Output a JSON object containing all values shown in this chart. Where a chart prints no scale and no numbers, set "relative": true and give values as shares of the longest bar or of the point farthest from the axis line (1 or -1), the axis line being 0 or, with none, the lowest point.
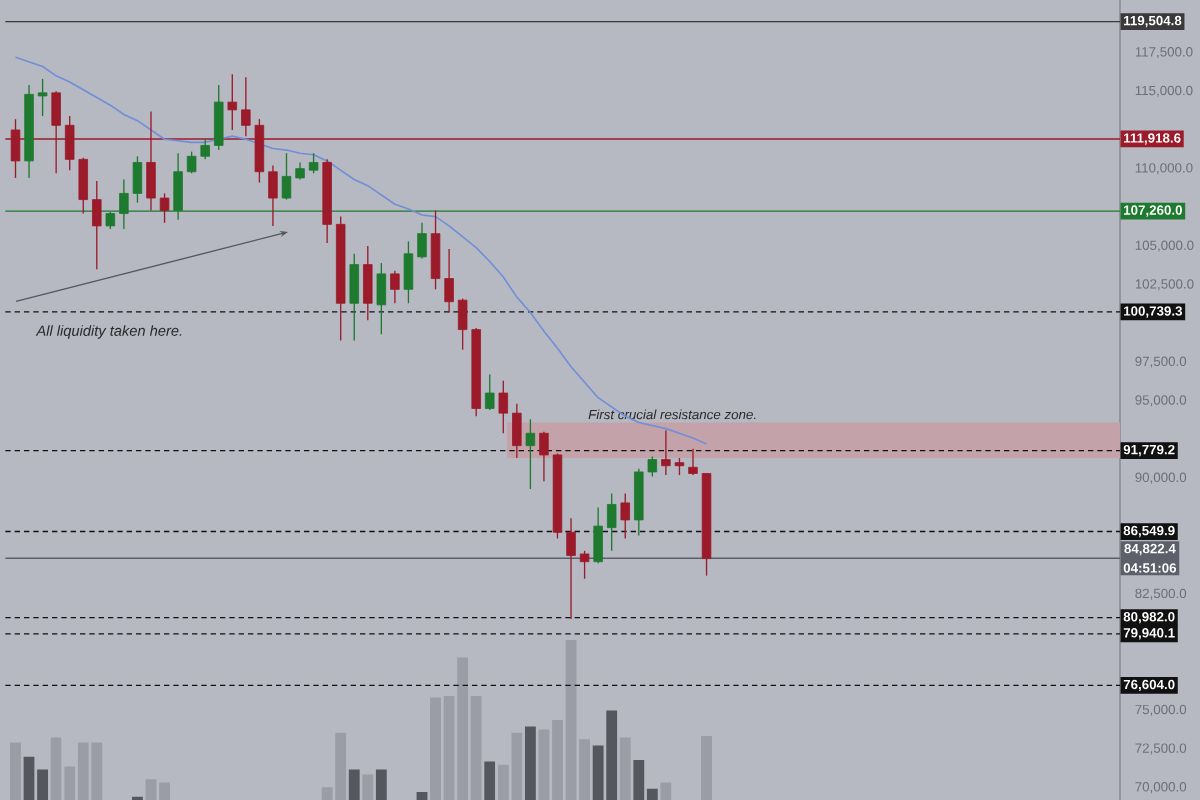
{
  "chart_data": [
    {
      "type": "candlestick",
      "categories": [
        null,
        null,
        null,
        null,
        null,
        null,
        null,
        null,
        null,
        null,
        null,
        null,
        null,
        null,
        null,
        null,
        null,
        null,
        null,
        null,
        null,
        null,
        null,
        null,
        null,
        null,
        null,
        null,
        null,
        null,
        null,
        null,
        null,
        null,
        null,
        null,
        null,
        null,
        null,
        null,
        null,
        null,
        null,
        null,
        null,
        null,
        null,
        null,
        null,
        null,
        null,
        null
      ],
      "ohlc": [
        [
          112500,
          113200,
          109400,
          110500
        ],
        [
          110500,
          115400,
          109400,
          114800
        ],
        [
          114700,
          115800,
          113400,
          114900
        ],
        [
          114900,
          115000,
          109700,
          112800
        ],
        [
          112800,
          113400,
          109900,
          110600
        ],
        [
          110600,
          110700,
          107100,
          108000
        ],
        [
          108000,
          109200,
          103500,
          106300
        ],
        [
          106300,
          107200,
          106100,
          107100
        ],
        [
          107100,
          109300,
          106100,
          108400
        ],
        [
          108400,
          110800,
          107800,
          110400
        ],
        [
          110400,
          113700,
          107300,
          108100
        ],
        [
          108100,
          108400,
          106500,
          107300
        ],
        [
          107300,
          111000,
          106700,
          109800
        ],
        [
          109800,
          111100,
          109700,
          110800
        ],
        [
          110800,
          111900,
          110600,
          111500
        ],
        [
          111500,
          115400,
          111200,
          114300
        ],
        [
          114300,
          116100,
          112500,
          113800
        ],
        [
          113800,
          115900,
          112100,
          112800
        ],
        [
          112800,
          113200,
          109100,
          109800
        ],
        [
          109800,
          110200,
          106300,
          108100
        ],
        [
          108100,
          111000,
          108000,
          109500
        ],
        [
          109400,
          110400,
          109300,
          110000
        ],
        [
          109900,
          111000,
          109700,
          110400
        ],
        [
          110400,
          110600,
          105200,
          106400
        ],
        [
          106400,
          106900,
          98900,
          101300
        ],
        [
          101300,
          104500,
          98900,
          103800
        ],
        [
          103800,
          105000,
          100200,
          101300
        ],
        [
          101200,
          103900,
          99300,
          103200
        ],
        [
          103200,
          103400,
          101300,
          102200
        ],
        [
          102200,
          105300,
          101300,
          104500
        ],
        [
          104300,
          106500,
          104200,
          105800
        ],
        [
          105800,
          107300,
          102200,
          102900
        ],
        [
          102900,
          104800,
          100700,
          101400
        ],
        [
          101500,
          101600,
          98300,
          99600
        ],
        [
          99600,
          99700,
          94000,
          94500
        ],
        [
          94500,
          96700,
          94400,
          95500
        ],
        [
          95500,
          96300,
          92900,
          94200
        ],
        [
          94200,
          94800,
          91300,
          92100
        ],
        [
          92100,
          93800,
          89300,
          92900
        ],
        [
          92900,
          93000,
          89800,
          91500
        ],
        [
          91500,
          91600,
          86100,
          86500
        ],
        [
          86500,
          87400,
          80900,
          85000
        ],
        [
          85100,
          85300,
          83500,
          84600
        ],
        [
          84600,
          88100,
          84500,
          86900
        ],
        [
          86800,
          89000,
          85300,
          88300
        ],
        [
          88400,
          89000,
          86100,
          87300
        ],
        [
          87300,
          90600,
          86300,
          90400
        ],
        [
          90400,
          91400,
          90100,
          91200
        ],
        [
          91200,
          93100,
          90200,
          90800
        ],
        [
          91000,
          91300,
          90200,
          90800
        ],
        [
          90700,
          91900,
          90200,
          90300
        ],
        [
          90300,
          90300,
          83700,
          84800
        ]
      ],
      "series": [
        {
          "type": "line",
          "color": "#6f8fd8",
          "values": [
            117200,
            116900,
            116600,
            116000,
            115600,
            115100,
            114600,
            114100,
            113500,
            113100,
            112500,
            111900,
            111800,
            111700,
            111700,
            111900,
            112100,
            111900,
            111600,
            111300,
            111200,
            111000,
            110900,
            110500,
            109900,
            109300,
            108900,
            108300,
            107700,
            107400,
            107000,
            106900,
            106300,
            105600,
            104900,
            104000,
            103000,
            101700,
            100700,
            99500,
            98400,
            97200,
            96200,
            95200,
            94600,
            94000,
            93600,
            93400,
            93200,
            92900,
            92600,
            92200
          ]
        }
      ],
      "ylim": [
        69200,
        120900
      ],
      "yticks": [
        {
          "value": 70000,
          "label": "70,000.0"
        },
        {
          "value": 72500,
          "label": "72,500.0"
        },
        {
          "value": 75000,
          "label": "75,000.0"
        },
        {
          "value": 82500,
          "label": "82,500.0"
        },
        {
          "value": 90000,
          "label": "90,000.0"
        },
        {
          "value": 95000,
          "label": "95,000.0"
        },
        {
          "value": 97500,
          "label": "97,500.0"
        },
        {
          "value": 102500,
          "label": "102,500.0"
        },
        {
          "value": 105000,
          "label": "105,000.0"
        },
        {
          "value": 110000,
          "label": "110,000.0"
        },
        {
          "value": 115000,
          "label": "115,000.0"
        },
        {
          "value": 117500,
          "label": "117,500.0"
        }
      ],
      "ref_lines": [
        {
          "axis": "y",
          "value": 119504.8,
          "label": "119,504.8",
          "color": "#3a3a3a",
          "line_style": "solid"
        },
        {
          "axis": "y",
          "value": 111918.6,
          "label": "111,918.6",
          "color": "#9b1b2a",
          "line_style": "solid"
        },
        {
          "axis": "y",
          "value": 107260.0,
          "label": "107,260.0",
          "color": "#1e7a2e",
          "line_style": "solid"
        },
        {
          "axis": "y",
          "value": 100739.3,
          "label": "100,739.3",
          "color": "#111111",
          "line_style": "dashed"
        },
        {
          "axis": "y",
          "value": 91779.2,
          "label": "91,779.2",
          "color": "#111111",
          "line_style": "dashed"
        },
        {
          "axis": "y",
          "value": 86549.9,
          "label": "86,549.9",
          "color": "#111111",
          "line_style": "dashed"
        },
        {
          "axis": "y",
          "value": 84822.4,
          "label": "84,822.4",
          "color": "#5d606a",
          "line_style": "solid"
        },
        {
          "axis": "y",
          "value": 80982.0,
          "label": "80,982.0",
          "color": "#111111",
          "line_style": "dashed"
        },
        {
          "axis": "y",
          "value": 79940.1,
          "label": "79,940.1",
          "color": "#111111",
          "line_style": "dashed"
        },
        {
          "axis": "y",
          "value": 76604.0,
          "label": "76,604.0",
          "color": "#111111",
          "line_style": "dashed"
        }
      ],
      "bands": [
        {
          "axis": "y",
          "from": 91300,
          "to": 93600,
          "label": "First crucial resistance zone.",
          "color": "#c3a2aa"
        }
      ],
      "annotations": [
        "All liquidity taken here.",
        "04:51:06"
      ]
    },
    {
      "type": "bar",
      "relative": true,
      "categories": [
        null,
        null,
        null,
        null,
        null,
        null,
        null,
        null,
        null,
        null,
        null,
        null,
        null,
        null,
        null,
        null,
        null,
        null,
        null,
        null,
        null,
        null,
        null,
        null,
        null,
        null,
        null,
        null,
        null,
        null,
        null,
        null,
        null,
        null,
        null,
        null,
        null,
        null,
        null,
        null,
        null,
        null,
        null,
        null,
        null,
        null,
        null,
        null,
        null,
        null,
        null,
        null
      ],
      "values": [
        0.36,
        0.27,
        0.19,
        0.39,
        0.21,
        0.36,
        0.36,
        null,
        null,
        0.02,
        0.13,
        0.11,
        null,
        null,
        null,
        null,
        null,
        null,
        null,
        null,
        null,
        null,
        null,
        0.08,
        0.42,
        0.19,
        0.16,
        0.19,
        null,
        null,
        0.05,
        0.64,
        0.65,
        0.89,
        0.65,
        0.24,
        0.22,
        0.42,
        0.46,
        0.44,
        0.5,
        1,
        0.38,
        0.34,
        0.56,
        0.39,
        0.25,
        0.07,
        0.11,
        null,
        null,
        0.4
      ],
      "colors": [
        "#9a9ca6",
        "#55575e",
        "#55575e",
        "#9a9ca6",
        "#9a9ca6",
        "#9a9ca6",
        "#9a9ca6",
        "#9a9ca6",
        "#9a9ca6",
        "#55575e",
        "#9a9ca6",
        "#9a9ca6",
        "#9a9ca6",
        "#9a9ca6",
        "#9a9ca6",
        "#9a9ca6",
        "#9a9ca6",
        "#9a9ca6",
        "#9a9ca6",
        "#9a9ca6",
        "#9a9ca6",
        "#9a9ca6",
        "#9a9ca6",
        "#9a9ca6",
        "#9a9ca6",
        "#55575e",
        "#9a9ca6",
        "#55575e",
        "#9a9ca6",
        "#9a9ca6",
        "#55575e",
        "#9a9ca6",
        "#9a9ca6",
        "#9a9ca6",
        "#9a9ca6",
        "#55575e",
        "#9a9ca6",
        "#9a9ca6",
        "#55575e",
        "#9a9ca6",
        "#9a9ca6",
        "#9a9ca6",
        "#9a9ca6",
        "#55575e",
        "#55575e",
        "#9a9ca6",
        "#55575e",
        "#55575e",
        "#9a9ca6",
        "#9a9ca6",
        "#9a9ca6",
        "#9a9ca6"
      ]
    }
  ]
}
